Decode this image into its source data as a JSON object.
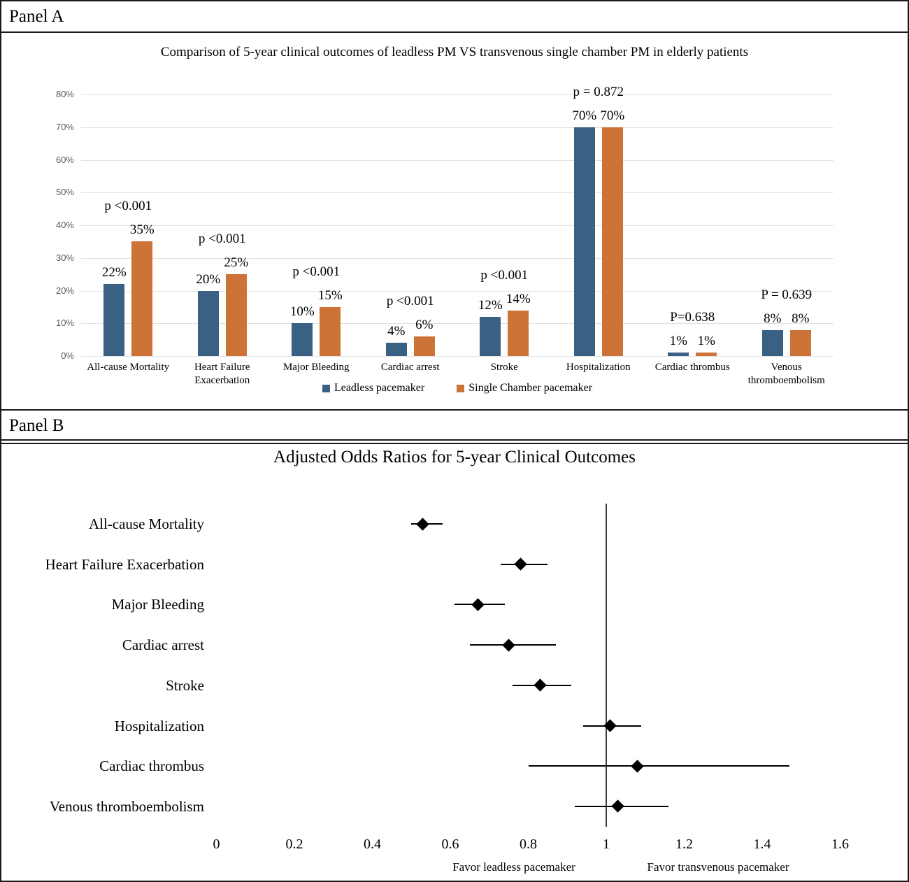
{
  "panels": {
    "a_label": "Panel A",
    "b_label": "Panel B"
  },
  "colors": {
    "leadless_blue": "#3A6183",
    "single_chamber_orange": "#CE7338",
    "gridline": "#E2E2E2",
    "axis_tick_gray": "#595959",
    "reference_line": "#404040"
  },
  "chart_data": [
    {
      "type": "bar",
      "title": "Comparison of  5-year clinical outcomes of leadless PM VS transvenous single chamber PM in elderly patients",
      "categories": [
        "All-cause Mortality",
        "Heart Failure Exacerbation",
        "Major Bleeding",
        "Cardiac arrest",
        "Stroke",
        "Hospitalization",
        "Cardiac thrombus",
        "Venous thromboembolism"
      ],
      "series": [
        {
          "name": "Leadless pacemaker",
          "color": "#3A6183",
          "values": [
            22,
            20,
            10,
            4,
            12,
            70,
            1,
            8
          ]
        },
        {
          "name": "Single Chamber pacemaker",
          "color": "#CE7338",
          "values": [
            35,
            25,
            15,
            6,
            14,
            70,
            1,
            8
          ]
        }
      ],
      "value_labels": [
        [
          "22%",
          "35%"
        ],
        [
          "20%",
          "25%"
        ],
        [
          "10%",
          "15%"
        ],
        [
          "4%",
          "6%"
        ],
        [
          "12%",
          "14%"
        ],
        [
          "70%",
          "70%"
        ],
        [
          "1%",
          "1%"
        ],
        [
          "8%",
          "8%"
        ]
      ],
      "p_labels": [
        "p <0.001",
        "p <0.001",
        "p <0.001",
        "p <0.001",
        "p <0.001",
        "p = 0.872",
        "P=0.638",
        "P = 0.639"
      ],
      "y_ticks": [
        "0%",
        "10%",
        "20%",
        "30%",
        "40%",
        "50%",
        "60%",
        "70%",
        "80%"
      ],
      "y_tick_values": [
        0,
        10,
        20,
        30,
        40,
        50,
        60,
        70,
        80
      ],
      "ylim": [
        0,
        80
      ],
      "grid": true,
      "legend_position": "bottom"
    },
    {
      "type": "scatter",
      "subtype": "forest-plot",
      "title": "Adjusted Odds Ratios for 5-year Clinical Outcomes",
      "categories": [
        "All-cause Mortality",
        "Heart Failure Exacerbation",
        "Major Bleeding",
        "Cardiac arrest",
        "Stroke",
        "Hospitalization",
        "Cardiac thrombus",
        "Venous thromboembolism"
      ],
      "odds_ratios": [
        0.53,
        0.78,
        0.67,
        0.75,
        0.83,
        1.01,
        1.08,
        1.03
      ],
      "ci_low": [
        0.5,
        0.73,
        0.61,
        0.65,
        0.76,
        0.94,
        0.8,
        0.92
      ],
      "ci_high": [
        0.58,
        0.85,
        0.74,
        0.87,
        0.91,
        1.09,
        1.47,
        1.16
      ],
      "reference_line": 1,
      "x_ticks": [
        "0",
        "0.2",
        "0.4",
        "0.6",
        "0.8",
        "1",
        "1.2",
        "1.4",
        "1.6"
      ],
      "x_tick_values": [
        0,
        0.2,
        0.4,
        0.6,
        0.8,
        1,
        1.2,
        1.4,
        1.6
      ],
      "xlim": [
        0,
        1.7
      ],
      "xlabel_left": "Favor leadless pacemaker",
      "xlabel_right": "Favor transvenous pacemaker",
      "grid": false
    }
  ]
}
